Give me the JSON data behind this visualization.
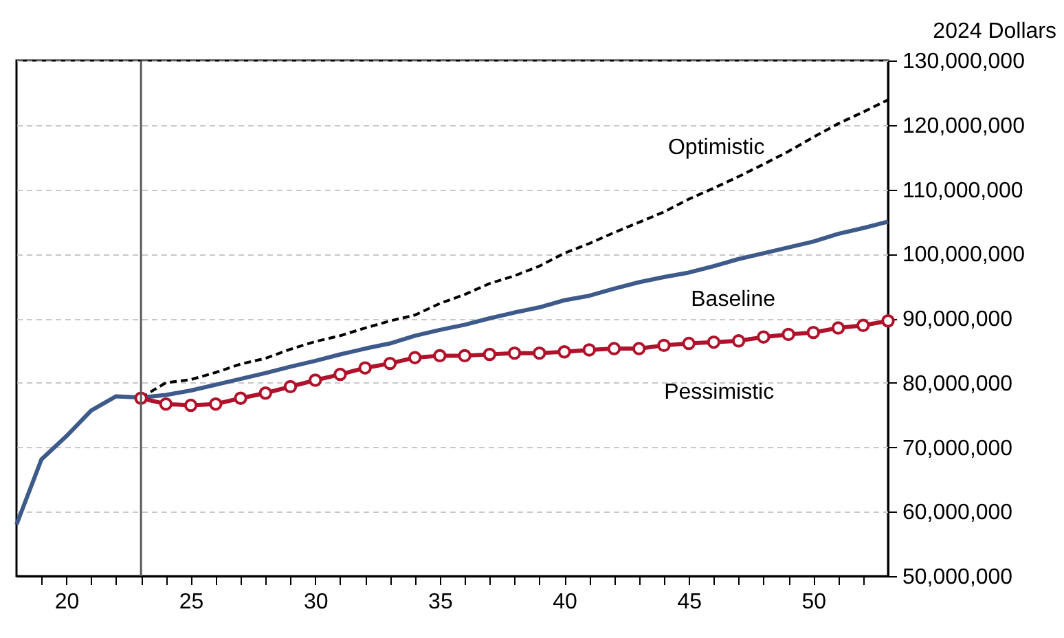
{
  "chart_data": {
    "type": "line",
    "ylabel": "2024 Dollars",
    "xlim": [
      18,
      53
    ],
    "xticks": [
      {
        "value": 19,
        "label": null
      },
      20,
      {
        "value": 21,
        "label": null
      },
      {
        "value": 22,
        "label": null
      },
      {
        "value": 23,
        "label": null
      },
      {
        "value": 24,
        "label": null
      },
      25,
      {
        "value": 26,
        "label": null
      },
      {
        "value": 27,
        "label": null
      },
      {
        "value": 28,
        "label": null
      },
      {
        "value": 29,
        "label": null
      },
      30,
      {
        "value": 31,
        "label": null
      },
      {
        "value": 32,
        "label": null
      },
      {
        "value": 33,
        "label": null
      },
      {
        "value": 34,
        "label": null
      },
      35,
      {
        "value": 36,
        "label": null
      },
      {
        "value": 37,
        "label": null
      },
      {
        "value": 38,
        "label": null
      },
      {
        "value": 39,
        "label": null
      },
      40,
      {
        "value": 41,
        "label": null
      },
      {
        "value": 42,
        "label": null
      },
      {
        "value": 43,
        "label": null
      },
      {
        "value": 44,
        "label": null
      },
      45,
      {
        "value": 46,
        "label": null
      },
      {
        "value": 47,
        "label": null
      },
      {
        "value": 48,
        "label": null
      },
      {
        "value": 49,
        "label": null
      },
      50,
      {
        "value": 51,
        "label": null
      },
      {
        "value": 52,
        "label": null
      }
    ],
    "ylim": [
      50000000,
      130000000
    ],
    "yticks": [
      {
        "value": 50000000,
        "label": "50,000,000"
      },
      {
        "value": 60000000,
        "label": "60,000,000"
      },
      {
        "value": 70000000,
        "label": "70,000,000"
      },
      {
        "value": 80000000,
        "label": "80,000,000"
      },
      {
        "value": 90000000,
        "label": "90,000,000"
      },
      {
        "value": 100000000,
        "label": "100,000,000"
      },
      {
        "value": 110000000,
        "label": "110,000,000"
      },
      {
        "value": 120000000,
        "label": "120,000,000"
      },
      {
        "value": 130000000,
        "label": "130,000,000"
      }
    ],
    "grid": "y",
    "legend": false,
    "ref_lines": [
      {
        "axis": "x",
        "value": 23,
        "color": "#595959"
      }
    ],
    "series": [
      {
        "name": "Baseline",
        "color": "#3e5a8a",
        "line_style": "solid",
        "marker": "none",
        "x": [
          18,
          19,
          20,
          21,
          22,
          23,
          24,
          25,
          26,
          27,
          28,
          29,
          30,
          31,
          32,
          33,
          34,
          35,
          36,
          37,
          38,
          39,
          40,
          41,
          42,
          43,
          44,
          45,
          46,
          47,
          48,
          49,
          50,
          51,
          52,
          53
        ],
        "values": [
          58000000,
          68100000,
          71700000,
          75700000,
          77900000,
          77700000,
          78100000,
          78800000,
          79700000,
          80600000,
          81500000,
          82500000,
          83400000,
          84400000,
          85300000,
          86100000,
          87300000,
          88200000,
          89000000,
          90000000,
          90900000,
          91700000,
          92800000,
          93500000,
          94600000,
          95600000,
          96400000,
          97100000,
          98100000,
          99200000,
          100100000,
          101000000,
          101900000,
          103100000,
          104000000,
          105000000
        ]
      },
      {
        "name": "Optimistic",
        "color": "#000000",
        "line_style": "dashed",
        "marker": "none",
        "x": [
          23,
          24,
          25,
          26,
          27,
          28,
          29,
          30,
          31,
          32,
          33,
          34,
          35,
          36,
          37,
          38,
          39,
          40,
          41,
          42,
          43,
          44,
          45,
          46,
          47,
          48,
          49,
          50,
          51,
          52,
          53
        ],
        "values": [
          77700000,
          80000000,
          80500000,
          81600000,
          82900000,
          83800000,
          85200000,
          86400000,
          87300000,
          88500000,
          89600000,
          90500000,
          92300000,
          93700000,
          95400000,
          96600000,
          98100000,
          100100000,
          101600000,
          103300000,
          104900000,
          106500000,
          108500000,
          110200000,
          112000000,
          113900000,
          115900000,
          118100000,
          120200000,
          122000000,
          123900000
        ]
      },
      {
        "name": "Pessimistic",
        "color": "#b0122b",
        "line_style": "solid",
        "marker": "circle",
        "x": [
          23,
          24,
          25,
          26,
          27,
          28,
          29,
          30,
          31,
          32,
          33,
          34,
          35,
          36,
          37,
          38,
          39,
          40,
          41,
          42,
          43,
          44,
          45,
          46,
          47,
          48,
          49,
          50,
          51,
          52,
          53
        ],
        "values": [
          77600000,
          76700000,
          76500000,
          76700000,
          77600000,
          78400000,
          79400000,
          80400000,
          81300000,
          82300000,
          83000000,
          83900000,
          84200000,
          84200000,
          84400000,
          84600000,
          84600000,
          84800000,
          85100000,
          85300000,
          85300000,
          85800000,
          86100000,
          86300000,
          86500000,
          87100000,
          87500000,
          87800000,
          88500000,
          88900000,
          89600000
        ]
      }
    ]
  }
}
